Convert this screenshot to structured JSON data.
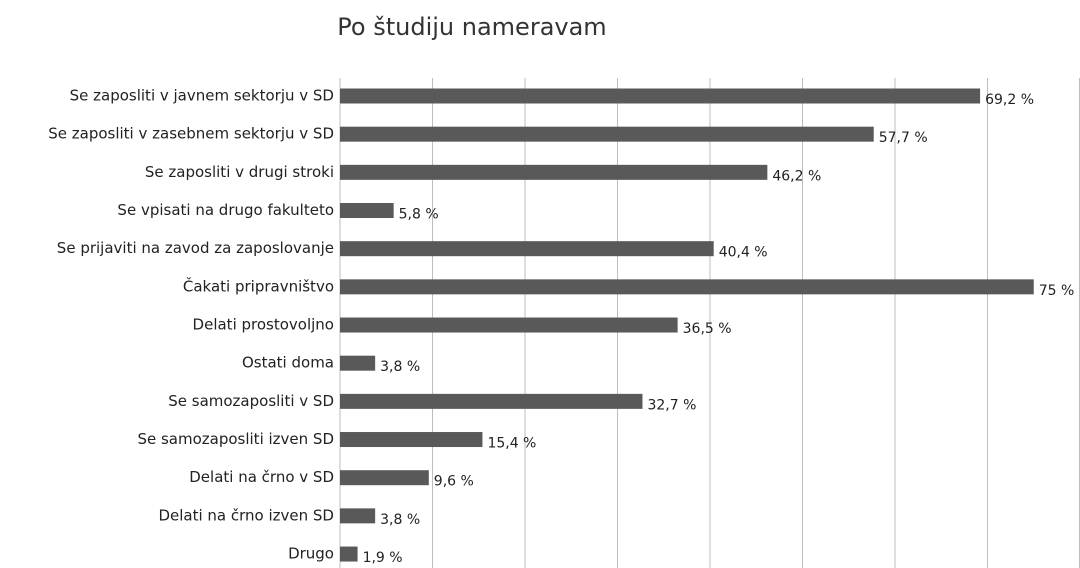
{
  "chart_data": {
    "type": "bar",
    "orientation": "horizontal",
    "title": "Po študiju nameravam",
    "categories": [
      "Se zaposliti v javnem sektorju v SD",
      "Se zaposliti v zasebnem sektorju v SD",
      "Se zaposliti v drugi stroki",
      "Se vpisati na drugo fakulteto",
      "Se prijaviti na zavod za zaposlovanje",
      "Čakati pripravništvo",
      "Delati prostovoljno",
      "Ostati doma",
      "Se samozaposliti v SD",
      "Se samozaposliti izven SD",
      "Delati na črno v SD",
      "Delati na črno izven SD",
      "Drugo"
    ],
    "values": [
      69.2,
      57.7,
      46.2,
      5.8,
      40.4,
      75,
      36.5,
      3.8,
      32.7,
      15.4,
      9.6,
      3.8,
      1.9
    ],
    "value_labels": [
      "69,2 %",
      "57,7 %",
      "46,2 %",
      "5,8 %",
      "40,4 %",
      "75 %",
      "36,5 %",
      "3,8 %",
      "32,7 %",
      "15,4 %",
      "9,6 %",
      "3,8 %",
      "1,9 %"
    ],
    "color": "#595959",
    "xlim": [
      0,
      80
    ],
    "xticks": [
      0,
      10,
      20,
      30,
      40,
      50,
      60,
      70,
      80
    ],
    "grid": true
  }
}
